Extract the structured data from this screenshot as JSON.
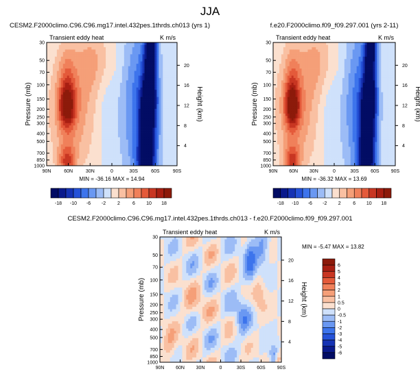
{
  "title": "JJA",
  "colors": {
    "neg_dark": "#0a1a8c",
    "neg_mid": "#2a5fe0",
    "neg_light": "#cfe1fb",
    "pos_light": "#fbe0cf",
    "pos_mid": "#f0805a",
    "pos_dark": "#8c1a0a"
  },
  "chart_data": [
    {
      "type": "heatmap",
      "title": "CESM2.F2000climo.C96.C96.mg17.intel.432pes.1thrds.ch013 (yrs 1)",
      "subtitle": "Transient eddy heat",
      "units": "K m/s",
      "xlabel": "",
      "ylabel": "Pressure (mb)",
      "ylabel_right": "Height (km)",
      "x_ticks": [
        "90N",
        "60N",
        "30N",
        "0",
        "30S",
        "60S",
        "90S"
      ],
      "y_ticks": [
        "30",
        "50",
        "70",
        "100",
        "150",
        "200",
        "250",
        "300",
        "400",
        "500",
        "700",
        "850",
        "1000"
      ],
      "y_ticks_right": [
        "20",
        "16",
        "12",
        "8",
        "4"
      ],
      "y_log_scale": true,
      "stats": "MIN = -36.16   MAX = 14.94",
      "min": -36.16,
      "max": 14.94,
      "colorbar": {
        "orientation": "horizontal",
        "levels": [
          "-18",
          "-14",
          "-10",
          "-8",
          "-6",
          "-4",
          "-2",
          "0",
          "2",
          "4",
          "6",
          "8",
          "10",
          "14",
          "18"
        ],
        "labels": [
          "-18",
          "-10",
          "-6",
          "-2",
          "2",
          "6",
          "10",
          "18"
        ]
      }
    },
    {
      "type": "heatmap",
      "title": "f.e20.F2000climo.f09_f09.297.001 (yrs 2-11)",
      "subtitle": "Transient eddy heat",
      "units": "K m/s",
      "xlabel": "",
      "ylabel": "Pressure (mb)",
      "ylabel_right": "Height (km)",
      "x_ticks": [
        "90N",
        "60N",
        "30N",
        "0",
        "30S",
        "60S",
        "90S"
      ],
      "y_ticks": [
        "30",
        "50",
        "70",
        "100",
        "150",
        "200",
        "250",
        "300",
        "400",
        "500",
        "700",
        "850",
        "1000"
      ],
      "y_ticks_right": [
        "20",
        "16",
        "12",
        "8",
        "4"
      ],
      "y_log_scale": true,
      "stats": "MIN = -36.32   MAX = 13.69",
      "min": -36.32,
      "max": 13.69,
      "colorbar": {
        "orientation": "horizontal",
        "levels": [
          "-18",
          "-14",
          "-10",
          "-8",
          "-6",
          "-4",
          "-2",
          "0",
          "2",
          "4",
          "6",
          "8",
          "10",
          "14",
          "18"
        ],
        "labels": [
          "-18",
          "-10",
          "-6",
          "-2",
          "2",
          "6",
          "10",
          "18"
        ]
      }
    },
    {
      "type": "heatmap",
      "title": "CESM2.F2000climo.C96.C96.mg17.intel.432pes.1thrds.ch013 - f.e20.F2000climo.f09_f09.297.001",
      "subtitle": "Transient eddy heat",
      "units": "K m/s",
      "xlabel": "",
      "ylabel": "Pressure (mb)",
      "ylabel_right": "Height (km)",
      "x_ticks": [
        "90N",
        "60N",
        "30N",
        "0",
        "30S",
        "60S",
        "90S"
      ],
      "y_ticks": [
        "30",
        "50",
        "70",
        "100",
        "150",
        "200",
        "250",
        "300",
        "400",
        "500",
        "700",
        "850",
        "1000"
      ],
      "y_ticks_right": [
        "20",
        "16",
        "12",
        "8",
        "4"
      ],
      "y_log_scale": true,
      "stats": "MIN = -5.47   MAX = 13.82",
      "min": -5.47,
      "max": 13.82,
      "colorbar": {
        "orientation": "vertical",
        "levels": [
          "6",
          "5",
          "4",
          "3",
          "2",
          "1",
          "0.5",
          "0",
          "-0.5",
          "-1",
          "-2",
          "-3",
          "-4",
          "-5",
          "-6"
        ],
        "labels": [
          "6",
          "5",
          "4",
          "3",
          "2",
          "1",
          "0.5",
          "0",
          "-0.5",
          "-1",
          "-2",
          "-3",
          "-4",
          "-5",
          "-6"
        ]
      }
    }
  ]
}
